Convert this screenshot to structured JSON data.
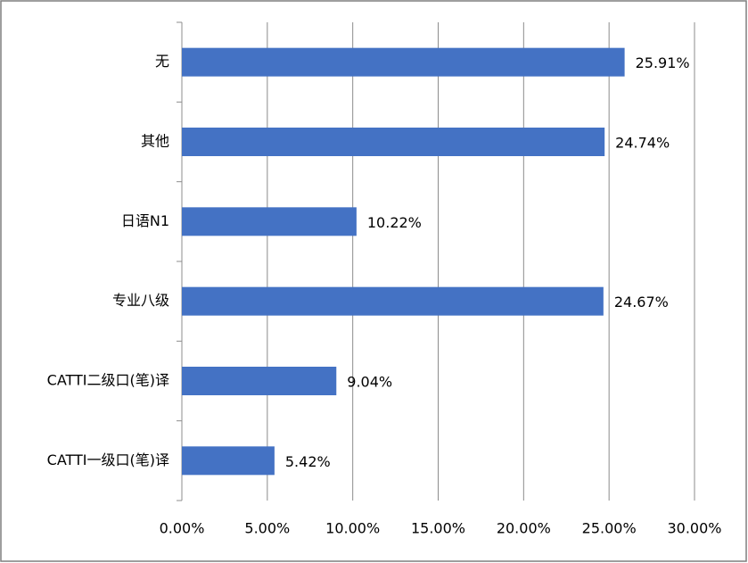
{
  "chart_data": {
    "type": "bar",
    "orientation": "horizontal",
    "categories": [
      "无",
      "其他",
      "日语N1",
      "专业八级",
      "CATTI二级口(笔)译",
      "CATTI一级口(笔)译"
    ],
    "values": [
      25.91,
      24.74,
      10.22,
      24.67,
      9.04,
      5.42
    ],
    "value_labels": [
      "25.91%",
      "24.74%",
      "10.22%",
      "24.67%",
      "9.04%",
      "5.42%"
    ],
    "color": "#4472c4",
    "xlim": [
      0,
      30
    ],
    "xticks": [
      {
        "value": 0,
        "label": "0.00%"
      },
      {
        "value": 5,
        "label": "5.00%"
      },
      {
        "value": 10,
        "label": "10.00%"
      },
      {
        "value": 15,
        "label": "15.00%"
      },
      {
        "value": 20,
        "label": "20.00%"
      },
      {
        "value": 25,
        "label": "25.00%"
      },
      {
        "value": 30,
        "label": "30.00%"
      }
    ],
    "grid": true
  }
}
